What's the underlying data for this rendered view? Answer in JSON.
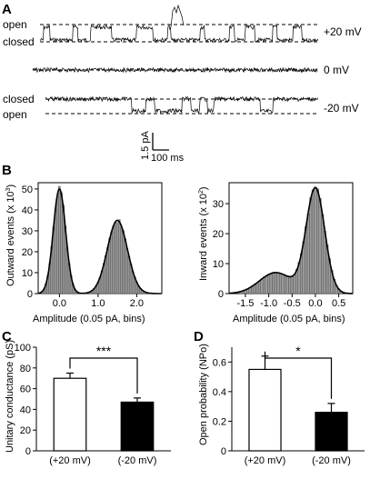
{
  "panelA": {
    "letter": "A",
    "traces": [
      {
        "label_top": "open",
        "label_bottom": "closed",
        "voltage": "+20 mV"
      },
      {
        "voltage": "0 mV"
      },
      {
        "label_top": "closed",
        "label_bottom": "open",
        "voltage": "-20 mV"
      }
    ],
    "scalebar": {
      "current": "1.5 pA",
      "time": "100 ms"
    }
  },
  "panelB": {
    "letter": "B",
    "outward": {
      "ylabel_main": "Outward events (x 10",
      "ylabel_exp": "3",
      "ylabel_tail": ")",
      "xlabel": "Amplitude (0.05 pA, bins)"
    },
    "inward": {
      "ylabel_main": "Inward events (x 10",
      "ylabel_exp": "2",
      "ylabel_tail": ")",
      "xlabel": "Amplitude (0.05 pA, bins)"
    }
  },
  "panelC": {
    "letter": "C",
    "significance": "***"
  },
  "panelD": {
    "letter": "D",
    "significance": "*"
  },
  "chart_data": [
    {
      "type": "bar",
      "panel": "B-left",
      "bins_center_range": [
        -0.45,
        2.4
      ],
      "bin_width": 0.05,
      "fit": [
        {
          "mean": 0.0,
          "sd": 0.16,
          "peak": 50
        },
        {
          "mean": 1.5,
          "sd": 0.26,
          "peak": 35
        }
      ],
      "xlim": [
        -0.55,
        2.65
      ],
      "ylim": [
        0,
        53
      ],
      "xticks": [
        0.0,
        1.0,
        2.0
      ],
      "xticklabels": [
        "0.0",
        "1.0",
        "2.0"
      ],
      "yticks": [
        0,
        10,
        20,
        30,
        40,
        50
      ],
      "yticklabels": [
        "0",
        "10",
        "20",
        "30",
        "40",
        "50"
      ],
      "grid": false
    },
    {
      "type": "bar",
      "panel": "B-right",
      "bins_center_range": [
        -1.6,
        0.55
      ],
      "bin_width": 0.05,
      "fit": [
        {
          "mean": 0.0,
          "sd": 0.2,
          "peak": 35
        },
        {
          "mean": -0.85,
          "sd": 0.35,
          "peak": 7
        }
      ],
      "xlim": [
        -1.85,
        0.8
      ],
      "ylim": [
        0,
        37
      ],
      "xticks": [
        -1.5,
        -1.0,
        -0.5,
        0.0,
        0.5
      ],
      "xticklabels": [
        "-1.5",
        "-1.0",
        "-0.5",
        "0.0",
        "0.5"
      ],
      "yticks": [
        0,
        10,
        20,
        30
      ],
      "yticklabels": [
        "0",
        "10",
        "20",
        "30"
      ],
      "grid": false
    },
    {
      "type": "bar",
      "panel": "C",
      "ylabel": "Unitary conductance (pS)",
      "categories": [
        "(+20 mV)",
        "(-20 mV)"
      ],
      "values": [
        70,
        47
      ],
      "errors": [
        5,
        4
      ],
      "colors": [
        "#ffffff",
        "#000000"
      ],
      "ylim": [
        0,
        100
      ],
      "yticks": [
        0,
        20,
        40,
        60,
        80,
        100
      ],
      "yticklabels": [
        "0",
        "20",
        "40",
        "60",
        "80",
        "100"
      ],
      "grid": false
    },
    {
      "type": "bar",
      "panel": "D",
      "ylabel": "Open probability (NPo)",
      "categories": [
        "(+20 mV)",
        "(-20 mV)"
      ],
      "values": [
        0.55,
        0.26
      ],
      "errors": [
        0.09,
        0.06
      ],
      "colors": [
        "#ffffff",
        "#000000"
      ],
      "ylim": [
        0,
        0.7
      ],
      "yticks": [
        0,
        0.2,
        0.4,
        0.6
      ],
      "yticklabels": [
        "0",
        "0.2",
        "0.4",
        "0.6"
      ],
      "grid": false
    }
  ]
}
